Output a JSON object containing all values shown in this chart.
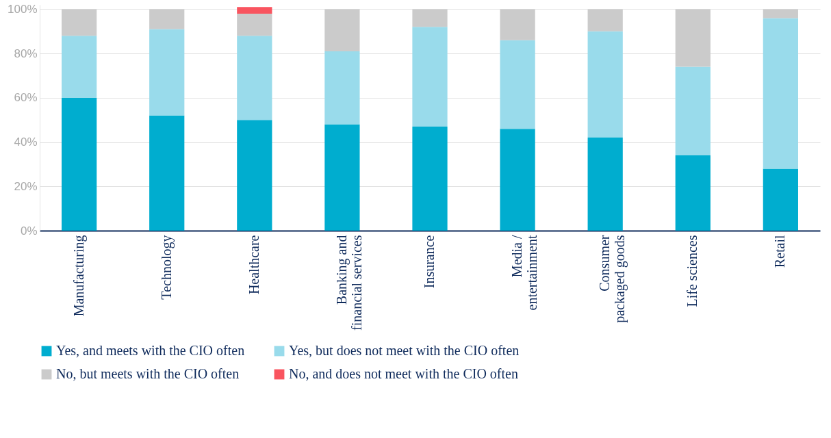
{
  "chart_data": {
    "type": "bar",
    "stacked": true,
    "categories": [
      "Manufacturing",
      "Technology",
      "Healthcare",
      "Banking and\nfinancial services",
      "Insurance",
      "Media /\nentertainment",
      "Consumer\npackaged goods",
      "Life sciences",
      "Retail"
    ],
    "series": [
      {
        "name": "Yes, and meets with the CIO often",
        "color": "#00adcf",
        "values": [
          60,
          52,
          50,
          48,
          47,
          46,
          42,
          34,
          28
        ]
      },
      {
        "name": "Yes, but does not meet with the CIO often",
        "color": "#99dbeb",
        "values": [
          28,
          39,
          38,
          33,
          45,
          40,
          48,
          40,
          68
        ]
      },
      {
        "name": "No, but meets with the CIO often",
        "color": "#cbcbcb",
        "values": [
          12,
          9,
          10,
          19,
          8,
          14,
          10,
          26,
          4
        ]
      },
      {
        "name": "No, and does not meet with the CIO often",
        "color": "#f9545f",
        "values": [
          0,
          0,
          3,
          0,
          0,
          0,
          0,
          0,
          0
        ]
      }
    ],
    "ylim": [
      0,
      102
    ],
    "yticks": [
      {
        "value": 0,
        "label": "0%"
      },
      {
        "value": 20,
        "label": "20%"
      },
      {
        "value": 40,
        "label": "40%"
      },
      {
        "value": 60,
        "label": "60%"
      },
      {
        "value": 80,
        "label": "80%"
      },
      {
        "value": 100,
        "label": "100%"
      }
    ],
    "grid": "y",
    "legend": "bottom"
  }
}
